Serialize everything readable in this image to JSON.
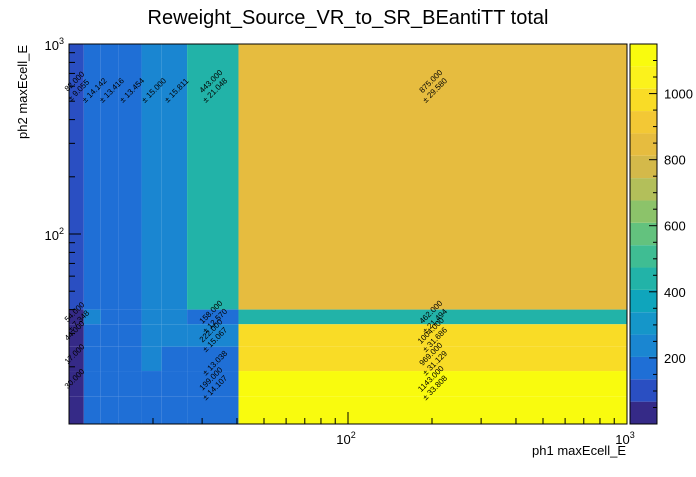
{
  "chart_data": {
    "type": "heatmap",
    "title": "Reweight_Source_VR_to_SR_BEantiTT total",
    "xlabel": "ph1 maxEcell_E",
    "ylabel": "ph2 maxEcell_E",
    "x_scale": "log",
    "y_scale": "log",
    "xlim": [
      10,
      1000
    ],
    "ylim": [
      10,
      1000
    ],
    "zlim": [
      0,
      1150
    ],
    "x_tick_labels": [
      {
        "value": 100,
        "label": "10",
        "exp": "2"
      },
      {
        "value": 1000,
        "label": "10",
        "exp": "3"
      }
    ],
    "y_tick_labels": [
      {
        "value": 100,
        "label": "10",
        "exp": "2"
      },
      {
        "value": 1000,
        "label": "10",
        "exp": "3"
      }
    ],
    "z_ticks": [
      200,
      400,
      600,
      800,
      1000
    ],
    "x_bin_edges": [
      10,
      11.3,
      13.0,
      15.0,
      18.2,
      21.5,
      26.5,
      40.5,
      1000
    ],
    "y_bin_edges": [
      10,
      14.0,
      19.0,
      25.5,
      33.5,
      40.0,
      1000
    ],
    "bins": [
      {
        "xi": 0,
        "yi": 5,
        "z": 82,
        "label": "82.000",
        "err": "± 9.055"
      },
      {
        "xi": 1,
        "yi": 5,
        "z": 200,
        "label": "",
        "err": "± 14.142"
      },
      {
        "xi": 2,
        "yi": 5,
        "z": 180,
        "label": "",
        "err": "± 13.416"
      },
      {
        "xi": 3,
        "yi": 5,
        "z": 181,
        "label": "",
        "err": "± 13.454"
      },
      {
        "xi": 4,
        "yi": 5,
        "z": 225,
        "label": "",
        "err": "± 15.000"
      },
      {
        "xi": 5,
        "yi": 5,
        "z": 250,
        "label": "",
        "err": "± 15.811"
      },
      {
        "xi": 6,
        "yi": 5,
        "z": 443,
        "label": "443.000",
        "err": "± 21.048"
      },
      {
        "xi": 7,
        "yi": 5,
        "z": 875,
        "label": "875.000",
        "err": "± 29.580"
      },
      {
        "xi": 0,
        "yi": 4,
        "z": 54,
        "label": "54.000",
        "err": "± 7.348"
      },
      {
        "xi": 1,
        "yi": 4,
        "z": 210,
        "label": "",
        "err": ""
      },
      {
        "xi": 2,
        "yi": 4,
        "z": 190,
        "label": "",
        "err": ""
      },
      {
        "xi": 3,
        "yi": 4,
        "z": 170,
        "label": "",
        "err": ""
      },
      {
        "xi": 4,
        "yi": 4,
        "z": 220,
        "label": "",
        "err": ""
      },
      {
        "xi": 5,
        "yi": 4,
        "z": 240,
        "label": "",
        "err": ""
      },
      {
        "xi": 6,
        "yi": 4,
        "z": 158,
        "label": "158.000",
        "err": "± 12.570"
      },
      {
        "xi": 7,
        "yi": 4,
        "z": 462,
        "label": "462.000",
        "err": "± 21.494"
      },
      {
        "xi": 0,
        "yi": 3,
        "z": 44,
        "label": "44.000",
        "err": ""
      },
      {
        "xi": 1,
        "yi": 3,
        "z": 190,
        "label": "",
        "err": ""
      },
      {
        "xi": 2,
        "yi": 3,
        "z": 180,
        "label": "",
        "err": ""
      },
      {
        "xi": 3,
        "yi": 3,
        "z": 175,
        "label": "",
        "err": ""
      },
      {
        "xi": 4,
        "yi": 3,
        "z": 230,
        "label": "",
        "err": ""
      },
      {
        "xi": 5,
        "yi": 3,
        "z": 235,
        "label": "",
        "err": ""
      },
      {
        "xi": 6,
        "yi": 3,
        "z": 222,
        "label": "222.000",
        "err": "± 15.067"
      },
      {
        "xi": 7,
        "yi": 3,
        "z": 1004,
        "label": "1004.000",
        "err": "± 31.686"
      },
      {
        "xi": 0,
        "yi": 2,
        "z": 17,
        "label": "17.000",
        "err": ""
      },
      {
        "xi": 1,
        "yi": 2,
        "z": 180,
        "label": "",
        "err": ""
      },
      {
        "xi": 2,
        "yi": 2,
        "z": 170,
        "label": "",
        "err": ""
      },
      {
        "xi": 3,
        "yi": 2,
        "z": 165,
        "label": "",
        "err": ""
      },
      {
        "xi": 4,
        "yi": 2,
        "z": 210,
        "label": "",
        "err": ""
      },
      {
        "xi": 5,
        "yi": 2,
        "z": 200,
        "label": "",
        "err": ""
      },
      {
        "xi": 6,
        "yi": 2,
        "z": 196,
        "label": "",
        "err": "± 13.038"
      },
      {
        "xi": 7,
        "yi": 2,
        "z": 969,
        "label": "969.000",
        "err": "± 31.129"
      },
      {
        "xi": 0,
        "yi": 1,
        "z": 30,
        "label": "30.000",
        "err": ""
      },
      {
        "xi": 1,
        "yi": 1,
        "z": 150,
        "label": "",
        "err": ""
      },
      {
        "xi": 2,
        "yi": 1,
        "z": 160,
        "label": "",
        "err": ""
      },
      {
        "xi": 3,
        "yi": 1,
        "z": 150,
        "label": "",
        "err": ""
      },
      {
        "xi": 4,
        "yi": 1,
        "z": 190,
        "label": "",
        "err": ""
      },
      {
        "xi": 5,
        "yi": 1,
        "z": 180,
        "label": "",
        "err": ""
      },
      {
        "xi": 6,
        "yi": 1,
        "z": 199,
        "label": "199.000",
        "err": "± 14.107"
      },
      {
        "xi": 7,
        "yi": 1,
        "z": 1143,
        "label": "1143.000",
        "err": "± 33.808"
      },
      {
        "xi": 0,
        "yi": 0,
        "z": 30,
        "label": "",
        "err": ""
      },
      {
        "xi": 1,
        "yi": 0,
        "z": 150,
        "label": "",
        "err": ""
      },
      {
        "xi": 2,
        "yi": 0,
        "z": 160,
        "label": "",
        "err": ""
      },
      {
        "xi": 3,
        "yi": 0,
        "z": 150,
        "label": "",
        "err": ""
      },
      {
        "xi": 4,
        "yi": 0,
        "z": 190,
        "label": "",
        "err": ""
      },
      {
        "xi": 5,
        "yi": 0,
        "z": 180,
        "label": "",
        "err": ""
      },
      {
        "xi": 6,
        "yi": 0,
        "z": 199,
        "label": "",
        "err": ""
      },
      {
        "xi": 7,
        "yi": 0,
        "z": 1143,
        "label": "",
        "err": ""
      }
    ],
    "palette": [
      "#352a87",
      "#2a4fc2",
      "#1f6fd6",
      "#1a86d1",
      "#1596c9",
      "#0fa5bc",
      "#22b3a8",
      "#3fbd93",
      "#63c27e",
      "#8cc36a",
      "#b3bf5a",
      "#d4b94a",
      "#e6bc3f",
      "#f3c835",
      "#f9dc26",
      "#fbf21c",
      "#f9fb0e"
    ]
  }
}
